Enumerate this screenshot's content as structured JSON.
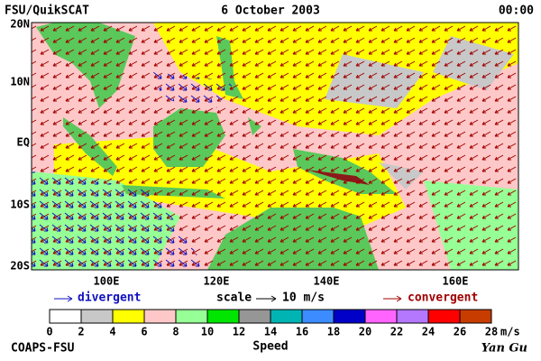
{
  "header": {
    "left": "FSU/QuikSCAT",
    "date": "6 October 2003",
    "time": "00:00"
  },
  "map": {
    "lat_labels": [
      "20N",
      "10N",
      "EQ",
      "10S",
      "20S"
    ],
    "lon_labels": [
      "100E",
      "120E",
      "140E",
      "160E"
    ]
  },
  "legend": {
    "divergent": "divergent",
    "scale": "scale",
    "scale_value": "10 m/s",
    "convergent": "convergent"
  },
  "colorbar": {
    "ticks": [
      0,
      2,
      4,
      6,
      8,
      10,
      12,
      14,
      16,
      18,
      20,
      22,
      24,
      26,
      28
    ],
    "unit": "m/s",
    "label": "Speed",
    "colors": [
      "#ffffff",
      "#c8c8c8",
      "#ffff00",
      "#ffc8c8",
      "#96ff96",
      "#00e600",
      "#969696",
      "#00b4b4",
      "#3c8cff",
      "#0000c8",
      "#ff64ff",
      "#b478ff",
      "#ff0000",
      "#c83c00",
      "#000000"
    ]
  },
  "footer": {
    "left": "COAPS-FSU",
    "right": "Yan Gu"
  }
}
